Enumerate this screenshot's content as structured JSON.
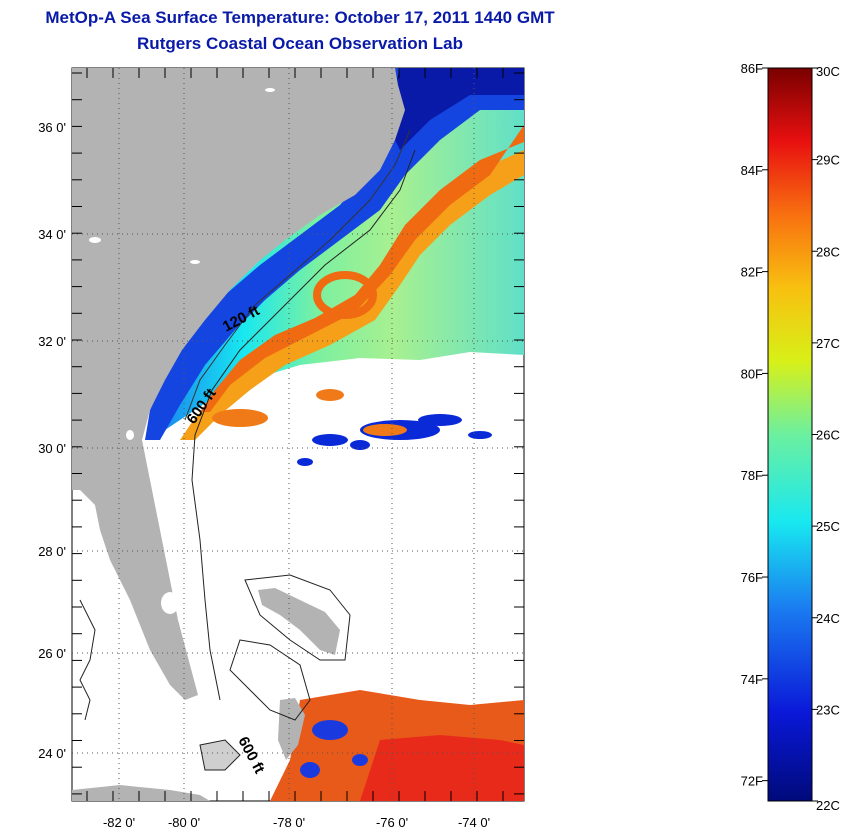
{
  "header": {
    "title": "MetOp-A Sea Surface Temperature:  October 17, 2011 1440 GMT",
    "subtitle": "Rutgers Coastal Ocean Observation Lab"
  },
  "map": {
    "lat_labels": [
      "36 0'",
      "34 0'",
      "32 0'",
      "30 0'",
      "28 0'",
      "26 0'",
      "24 0'"
    ],
    "lon_labels": [
      "-82 0'",
      "-80 0'",
      "-78 0'",
      "-76 0'",
      "-74 0'"
    ],
    "contour_labels": [
      "120 ft",
      "600 ft",
      "600 ft"
    ],
    "colors": {
      "land": "#b3b3b3",
      "no_data": "#ffffff",
      "cold": "#0a1aa8",
      "warm": "#e8401a"
    }
  },
  "colorbar": {
    "fahrenheit": [
      "86F",
      "84F",
      "82F",
      "80F",
      "78F",
      "76F",
      "74F",
      "72F"
    ],
    "celsius": [
      "30C",
      "29C",
      "28C",
      "27C",
      "26C",
      "25C",
      "24C",
      "23C",
      "22C"
    ],
    "min_c": 22,
    "max_c": 30
  }
}
